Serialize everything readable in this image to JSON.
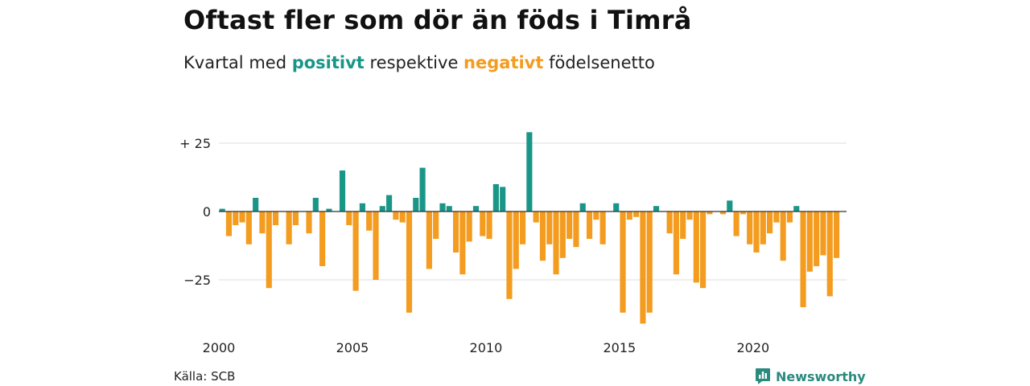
{
  "title": "Oftast fler som dör än föds i Timrå",
  "subtitle": {
    "before": "Kvartal med ",
    "positive_word": "positivt",
    "middle": " respektive ",
    "negative_word": "negativt",
    "after": " födelsenetto"
  },
  "source": "Källa: SCB",
  "brand": "Newsworthy",
  "colors": {
    "positive": "#1a9688",
    "negative": "#f39c1f",
    "grid": "#dddddd",
    "zero_line": "#333333"
  },
  "chart_data": {
    "type": "bar",
    "x_start": 2000,
    "x_step": 0.25,
    "xlim": [
      2000,
      2023.5
    ],
    "ylim": [
      -42,
      30
    ],
    "y_ticks": [
      25,
      0,
      -25
    ],
    "y_tick_labels": [
      "+ 25",
      "0",
      "−25"
    ],
    "x_ticks": [
      2000,
      2005,
      2010,
      2015,
      2020
    ],
    "x_tick_labels": [
      "2000",
      "2005",
      "2010",
      "2015",
      "2020"
    ],
    "values": [
      1,
      -9,
      -5,
      -4,
      -12,
      5,
      -8,
      -28,
      -5,
      0,
      -12,
      -5,
      0,
      -8,
      5,
      -20,
      1,
      0,
      15,
      -5,
      -29,
      3,
      -7,
      -25,
      2,
      6,
      -3,
      -4,
      -37,
      5,
      16,
      -21,
      -10,
      3,
      2,
      -15,
      -23,
      -11,
      2,
      -9,
      -10,
      10,
      9,
      -32,
      -21,
      -12,
      29,
      -4,
      -18,
      -12,
      -23,
      -17,
      -10,
      -13,
      3,
      -10,
      -3,
      -12,
      0,
      3,
      -37,
      -3,
      -2,
      -41,
      -37,
      2,
      0,
      -8,
      -23,
      -10,
      -3,
      -26,
      -28,
      -1,
      0,
      -1,
      4,
      -9,
      -1,
      -12,
      -15,
      -12,
      -8,
      -4,
      -18,
      -4,
      2,
      -35,
      -22,
      -20,
      -16,
      -31,
      -17
    ]
  }
}
